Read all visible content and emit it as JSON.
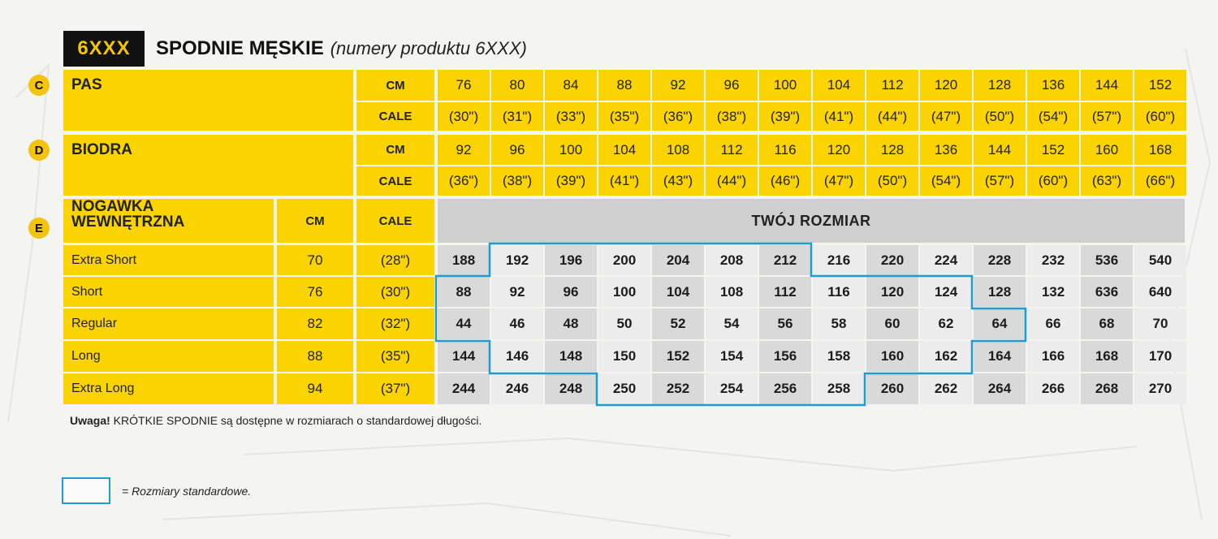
{
  "header": {
    "badge": "6XXX",
    "title": "SPODNIE MĘSKIE",
    "subtitle": "(numery produktu 6XXX)"
  },
  "sections": [
    {
      "marker": "C",
      "label": "PAS",
      "cm_unit": "CM",
      "cale_unit": "CALE",
      "cm": [
        "76",
        "80",
        "84",
        "88",
        "92",
        "96",
        "100",
        "104",
        "112",
        "120",
        "128",
        "136",
        "144",
        "152"
      ],
      "cale": [
        "(30\")",
        "(31\")",
        "(33\")",
        "(35\")",
        "(36\")",
        "(38\")",
        "(39\")",
        "(41\")",
        "(44\")",
        "(47\")",
        "(50\")",
        "(54\")",
        "(57\")",
        "(60\")"
      ]
    },
    {
      "marker": "D",
      "label": "BIODRA",
      "cm_unit": "CM",
      "cale_unit": "CALE",
      "cm": [
        "92",
        "96",
        "100",
        "104",
        "108",
        "112",
        "116",
        "120",
        "128",
        "136",
        "144",
        "152",
        "160",
        "168"
      ],
      "cale": [
        "(36\")",
        "(38\")",
        "(39\")",
        "(41\")",
        "(43\")",
        "(44\")",
        "(46\")",
        "(47\")",
        "(50\")",
        "(54\")",
        "(57\")",
        "(60\")",
        "(63\")",
        "(66\")"
      ]
    }
  ],
  "inseam": {
    "marker": "E",
    "label_line1": "NOGAWKA",
    "label_line2": "WEWNĘTRZNA",
    "cm_header": "CM",
    "cale_header": "CALE",
    "size_header": "TWÓJ ROZMIAR",
    "rows": [
      {
        "name": "Extra Short",
        "cm": "70",
        "cale": "(28\")",
        "sizes": [
          "188",
          "192",
          "196",
          "200",
          "204",
          "208",
          "212",
          "216",
          "220",
          "224",
          "228",
          "232",
          "536",
          "540"
        ]
      },
      {
        "name": "Short",
        "cm": "76",
        "cale": "(30\")",
        "sizes": [
          "88",
          "92",
          "96",
          "100",
          "104",
          "108",
          "112",
          "116",
          "120",
          "124",
          "128",
          "132",
          "636",
          "640"
        ]
      },
      {
        "name": "Regular",
        "cm": "82",
        "cale": "(32\")",
        "sizes": [
          "44",
          "46",
          "48",
          "50",
          "52",
          "54",
          "56",
          "58",
          "60",
          "62",
          "64",
          "66",
          "68",
          "70"
        ]
      },
      {
        "name": "Long",
        "cm": "88",
        "cale": "(35\")",
        "sizes": [
          "144",
          "146",
          "148",
          "150",
          "152",
          "154",
          "156",
          "158",
          "160",
          "162",
          "164",
          "166",
          "168",
          "170"
        ]
      },
      {
        "name": "Extra Long",
        "cm": "94",
        "cale": "(37\")",
        "sizes": [
          "244",
          "246",
          "248",
          "250",
          "252",
          "254",
          "256",
          "258",
          "260",
          "262",
          "264",
          "266",
          "268",
          "270"
        ]
      }
    ],
    "standard_columns": [
      [
        1,
        6
      ],
      [
        0,
        9
      ],
      [
        0,
        10
      ],
      [
        1,
        9
      ],
      [
        3,
        7
      ]
    ]
  },
  "note": {
    "bold": "Uwaga!",
    "text": " KRÓTKIE SPODNIE są dostępne w rozmiarach o standardowej długości."
  },
  "legend": {
    "text": "= Rozmiary standardowe."
  },
  "colors": {
    "yellow": "#fbd400",
    "outline": "#1e9bd0",
    "badge_bg": "#111111"
  }
}
